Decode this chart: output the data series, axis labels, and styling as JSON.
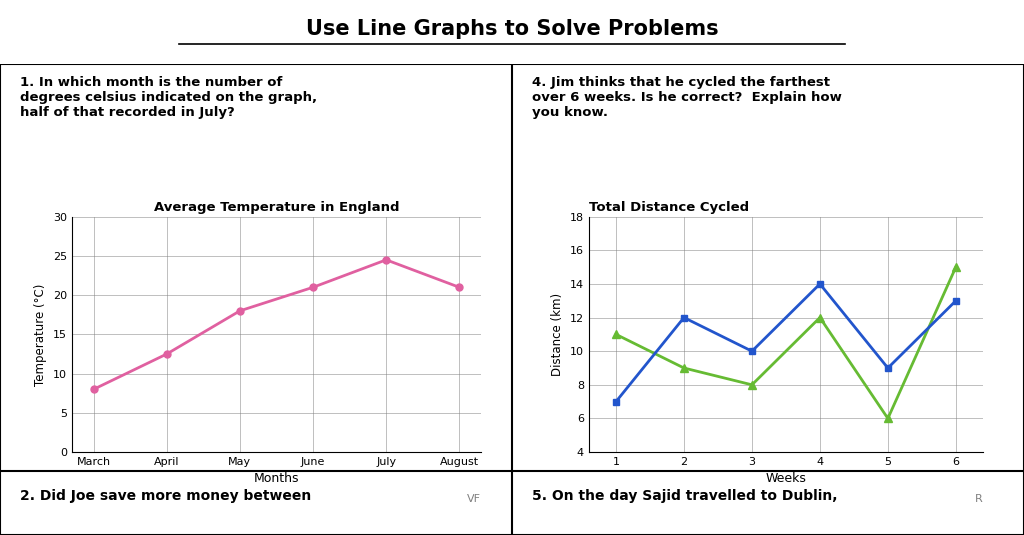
{
  "title": "Use Line Graphs to Solve Problems",
  "bg_color": "#ffffff",
  "border_color": "#000000",
  "q1_text": "1. In which month is the number of\ndegrees celsius indicated on the graph,\nhalf of that recorded in July?",
  "q4_text": "4. Jim thinks that he cycled the farthest\nover 6 weeks. Is he correct?  Explain how\nyou know.",
  "q2_text": "2. Did Joe save more money between",
  "q5_text": "5. On the day Sajid travelled to Dublin,",
  "temp_title": "Average Temperature in England",
  "temp_months": [
    "March",
    "April",
    "May",
    "June",
    "July",
    "August"
  ],
  "temp_values": [
    8,
    12.5,
    18,
    21,
    24.5,
    21
  ],
  "temp_color": "#e060a0",
  "temp_xlabel": "Months",
  "temp_ylabel": "Temperature (°C)",
  "temp_ylim": [
    0,
    30
  ],
  "temp_yticks": [
    0,
    5,
    10,
    15,
    20,
    25,
    30
  ],
  "cycle_title": "Total Distance Cycled",
  "cycle_weeks": [
    1,
    2,
    3,
    4,
    5,
    6
  ],
  "jim_values": [
    11,
    9,
    8,
    12,
    6,
    15
  ],
  "kay_values": [
    7,
    12,
    10,
    14,
    9,
    13
  ],
  "jim_color": "#66bb33",
  "kay_color": "#2255cc",
  "cycle_xlabel": "Weeks",
  "cycle_ylabel": "Distance (km)",
  "cycle_ylim": [
    4,
    18
  ],
  "cycle_yticks": [
    4,
    6,
    8,
    10,
    12,
    14,
    16,
    18
  ],
  "vf_label": "VF",
  "r_label": "R"
}
